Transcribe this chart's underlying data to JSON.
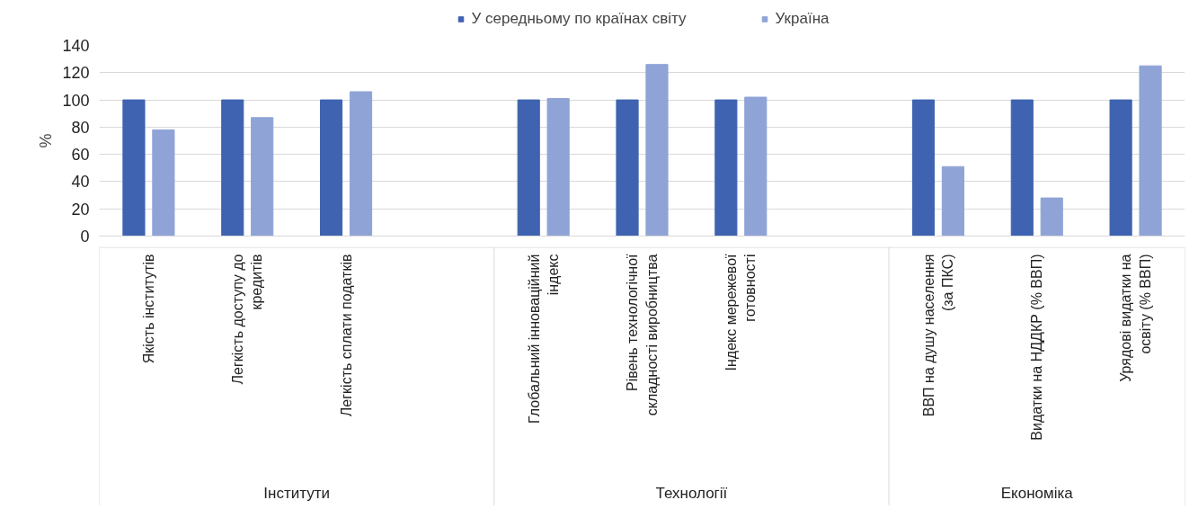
{
  "chart_data": {
    "type": "bar",
    "categories": [
      "Якість інститутів",
      "Легкість доступу до кредитів",
      "Легкість сплати податків",
      null,
      "Глобальний інноваційний індекс",
      "Рівень технологічної складності виробництва",
      "Індекс мережевої готовності",
      null,
      "ВВП на душу населення (за ПКС)",
      "Видатки на НДДКР (% ВВП)",
      "Урядові видатки на освіту (% ВВП)"
    ],
    "series": [
      {
        "name": "У середньому по країнах світу",
        "color": "#3f63b0",
        "values": [
          100,
          100,
          100,
          null,
          100,
          100,
          100,
          null,
          100,
          100,
          100
        ]
      },
      {
        "name": "Україна",
        "color": "#8fa3d6",
        "values": [
          78,
          87,
          106,
          null,
          101,
          126,
          102,
          null,
          51,
          28,
          125
        ]
      }
    ],
    "ylabel": "%",
    "ylim": [
      0,
      140
    ],
    "yticks": [
      0,
      20,
      40,
      60,
      80,
      100,
      120,
      140
    ],
    "annotations": [
      "Інститути",
      "Технології",
      "Економіка"
    ],
    "grid": "y",
    "legend": "top"
  }
}
